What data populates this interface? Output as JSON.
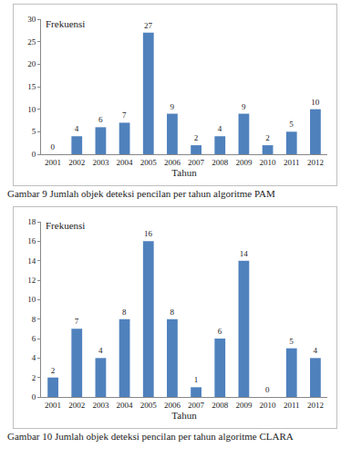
{
  "chart_data": [
    {
      "type": "bar",
      "title": "Gambar 9 Jumlah objek deteksi pencilan per tahun algoritme PAM",
      "x_label": "Tahun",
      "y_label": "Frekuensi",
      "categories": [
        "2001",
        "2002",
        "2003",
        "2004",
        "2005",
        "2006",
        "2007",
        "2008",
        "2009",
        "2010",
        "2011",
        "2012"
      ],
      "values": [
        0,
        4,
        6,
        7,
        27,
        9,
        2,
        4,
        9,
        2,
        5,
        10
      ],
      "color": "#4f81bd",
      "ylim": [
        0,
        30
      ],
      "yticks": [
        0,
        5,
        10,
        15,
        20,
        25,
        30
      ],
      "grid": false,
      "data_labels": true
    },
    {
      "type": "bar",
      "title": "Gambar 10 Jumlah objek deteksi pencilan per tahun algoritme CLARA",
      "x_label": "Tahun",
      "y_label": "Frekuensi",
      "categories": [
        "2001",
        "2002",
        "2003",
        "2004",
        "2005",
        "2006",
        "2007",
        "2008",
        "2009",
        "2010",
        "2011",
        "2012"
      ],
      "values": [
        2,
        7,
        4,
        8,
        16,
        8,
        1,
        6,
        14,
        0,
        5,
        4
      ],
      "color": "#4f81bd",
      "ylim": [
        0,
        18
      ],
      "yticks": [
        0,
        2,
        4,
        6,
        8,
        10,
        12,
        14,
        16,
        18
      ],
      "grid": false,
      "data_labels": true
    }
  ]
}
